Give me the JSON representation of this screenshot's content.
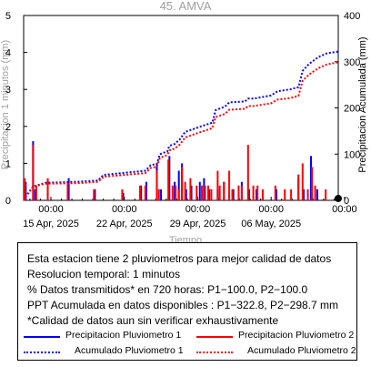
{
  "chart_data": {
    "type": "bar",
    "title": "45. AMVA",
    "xlabel": "Tiempo",
    "ylabel_left": "Precipitacion 1 minutos (mm)",
    "ylabel_right": "Precipitacion Acumulada (mm)",
    "ylim_left": [
      0,
      5
    ],
    "ylim_right": [
      0,
      400
    ],
    "yticks_left": [
      "0",
      "1",
      "2",
      "3",
      "4",
      "5"
    ],
    "yticks_right": [
      "0",
      "100",
      "200",
      "300",
      "400"
    ],
    "xticks": [
      {
        "time": "00:00",
        "date": "15 Apr, 2025"
      },
      {
        "time": "00:00",
        "date": "22 Apr, 2025"
      },
      {
        "time": "00:00",
        "date": "29 Apr, 2025"
      },
      {
        "time": "00:00",
        "date": "06 May, 2025"
      },
      {
        "time": "00:00",
        "date": ""
      }
    ],
    "x_range_days": [
      -2.6,
      27.4
    ],
    "xtick_days": [
      0,
      7,
      14,
      21,
      28
    ],
    "series": [
      {
        "name": "Precipitacion Pluviometro 1",
        "color": "#0000ff",
        "style": "bar",
        "bars": [
          [
            -2.4,
            0.5
          ],
          [
            -1.7,
            1.6
          ],
          [
            -1.5,
            0.3
          ],
          [
            -0.3,
            0.5
          ],
          [
            1.7,
            0.6
          ],
          [
            4.2,
            0.3
          ],
          [
            6.9,
            0.2
          ],
          [
            8.6,
            0.4
          ],
          [
            9.1,
            0.5
          ],
          [
            10.1,
            1.0
          ],
          [
            10.5,
            0.3
          ],
          [
            11.3,
            1.2
          ],
          [
            11.8,
            0.5
          ],
          [
            12.2,
            0.8
          ],
          [
            12.5,
            1.0
          ],
          [
            12.9,
            0.3
          ],
          [
            13.4,
            0.4
          ],
          [
            14.2,
            0.5
          ],
          [
            14.6,
            0.6
          ],
          [
            15.1,
            0.3
          ],
          [
            15.9,
            0.3
          ],
          [
            16.5,
            0.5
          ],
          [
            17.0,
            0.2
          ],
          [
            17.4,
            0.3
          ],
          [
            18.2,
            0.5
          ],
          [
            18.9,
            0.3
          ],
          [
            19.6,
            0.3
          ],
          [
            20.2,
            0.2
          ],
          [
            21.5,
            0.3
          ],
          [
            23.6,
            0.6
          ],
          [
            24.1,
            0.3
          ],
          [
            24.8,
            1.2
          ],
          [
            25.4,
            0.3
          ]
        ]
      },
      {
        "name": "Precipitacion Pluviometro 2",
        "color": "#ff0000",
        "style": "bar",
        "bars": [
          [
            -2.5,
            0.6
          ],
          [
            -1.7,
            1.5
          ],
          [
            -1.4,
            0.4
          ],
          [
            -0.3,
            0.6
          ],
          [
            1.6,
            0.5
          ],
          [
            4.1,
            0.3
          ],
          [
            6.8,
            0.3
          ],
          [
            8.5,
            0.4
          ],
          [
            9.0,
            0.4
          ],
          [
            10.1,
            0.8
          ],
          [
            10.3,
            0.3
          ],
          [
            11.2,
            1.1
          ],
          [
            11.6,
            0.4
          ],
          [
            11.9,
            0.4
          ],
          [
            12.2,
            0.3
          ],
          [
            12.5,
            0.9
          ],
          [
            12.8,
            0.5
          ],
          [
            13.3,
            0.6
          ],
          [
            13.9,
            0.4
          ],
          [
            14.4,
            0.4
          ],
          [
            14.7,
            0.4
          ],
          [
            15.0,
            0.4
          ],
          [
            15.3,
            0.3
          ],
          [
            15.9,
            0.8
          ],
          [
            16.1,
            0.4
          ],
          [
            16.5,
            0.5
          ],
          [
            17.0,
            0.8
          ],
          [
            17.3,
            0.3
          ],
          [
            17.9,
            0.4
          ],
          [
            18.2,
            0.4
          ],
          [
            18.8,
            1.5
          ],
          [
            19.3,
            0.4
          ],
          [
            19.7,
            0.4
          ],
          [
            20.2,
            0.3
          ],
          [
            21.4,
            0.4
          ],
          [
            22.3,
            0.3
          ],
          [
            22.9,
            0.3
          ],
          [
            23.6,
            0.7
          ],
          [
            24.0,
            1.0
          ],
          [
            24.5,
            0.3
          ],
          [
            24.9,
            0.9
          ],
          [
            25.2,
            0.4
          ],
          [
            26.2,
            0.3
          ]
        ]
      },
      {
        "name": "Acumulado Pluviometro 1",
        "color": "#0000ff",
        "style": "dotted",
        "points": [
          [
            -2.6,
            0
          ],
          [
            -2.4,
            8
          ],
          [
            -1.7,
            30
          ],
          [
            -0.5,
            38
          ],
          [
            2.5,
            40
          ],
          [
            4.5,
            43
          ],
          [
            5.0,
            55
          ],
          [
            9.0,
            64
          ],
          [
            9.5,
            76
          ],
          [
            10.1,
            79
          ],
          [
            10.4,
            100
          ],
          [
            11.1,
            106
          ],
          [
            11.3,
            118
          ],
          [
            11.8,
            122
          ],
          [
            12.3,
            132
          ],
          [
            12.8,
            148
          ],
          [
            14.3,
            160
          ],
          [
            15.4,
            168
          ],
          [
            15.7,
            195
          ],
          [
            16.6,
            203
          ],
          [
            17.0,
            212
          ],
          [
            18.5,
            214
          ],
          [
            18.8,
            220
          ],
          [
            19.3,
            220
          ],
          [
            21.0,
            227
          ],
          [
            21.6,
            236
          ],
          [
            22.8,
            240
          ],
          [
            23.6,
            245
          ],
          [
            24.0,
            280
          ],
          [
            24.6,
            295
          ],
          [
            25.5,
            310
          ],
          [
            26.3,
            318
          ],
          [
            27.4,
            322
          ]
        ]
      },
      {
        "name": "Acumulado Pluviometro 2",
        "color": "#ff0000",
        "style": "dotted",
        "points": [
          [
            -2.6,
            0
          ],
          [
            -2.4,
            8
          ],
          [
            -1.7,
            30
          ],
          [
            -0.5,
            36
          ],
          [
            2.5,
            37
          ],
          [
            4.5,
            40
          ],
          [
            5.0,
            51
          ],
          [
            9.0,
            59
          ],
          [
            9.5,
            70
          ],
          [
            10.1,
            73
          ],
          [
            10.4,
            92
          ],
          [
            11.1,
            98
          ],
          [
            11.3,
            108
          ],
          [
            11.8,
            112
          ],
          [
            12.3,
            121
          ],
          [
            12.8,
            136
          ],
          [
            14.3,
            148
          ],
          [
            15.4,
            156
          ],
          [
            15.7,
            180
          ],
          [
            16.6,
            187
          ],
          [
            17.0,
            196
          ],
          [
            18.5,
            198
          ],
          [
            18.8,
            204
          ],
          [
            19.3,
            204
          ],
          [
            21.0,
            210
          ],
          [
            21.6,
            218
          ],
          [
            22.8,
            221
          ],
          [
            23.6,
            226
          ],
          [
            24.0,
            259
          ],
          [
            24.6,
            272
          ],
          [
            25.5,
            286
          ],
          [
            26.3,
            294
          ],
          [
            27.4,
            299
          ]
        ]
      }
    ],
    "marker": {
      "shape": "circle",
      "color": "#000000",
      "right_axis_value": 4
    }
  },
  "info": {
    "lines": [
      "Esta estacion tiene 2 pluviometros para mejor calidad de datos",
      "Resolucion temporal: 1 minutos",
      "% Datos transmitidos* en 720 horas: P1−100.0, P2−100.0",
      "PPT Acumulada en datos disponibles : P1−322.8, P2−298.7 mm",
      "*Calidad de datos aun sin verificar exhaustivamente"
    ],
    "legend": [
      {
        "label": "Precipitacion Pluviometro 1",
        "color": "#0000ff",
        "style": "solid"
      },
      {
        "label": "Precipitacion Pluviometro 2",
        "color": "#ff0000",
        "style": "solid"
      },
      {
        "label": "Acumulado Pluviometro 1",
        "color": "#0000ff",
        "style": "dotted"
      },
      {
        "label": "Acumulado Pluviometro 2",
        "color": "#ff0000",
        "style": "dotted"
      }
    ]
  }
}
